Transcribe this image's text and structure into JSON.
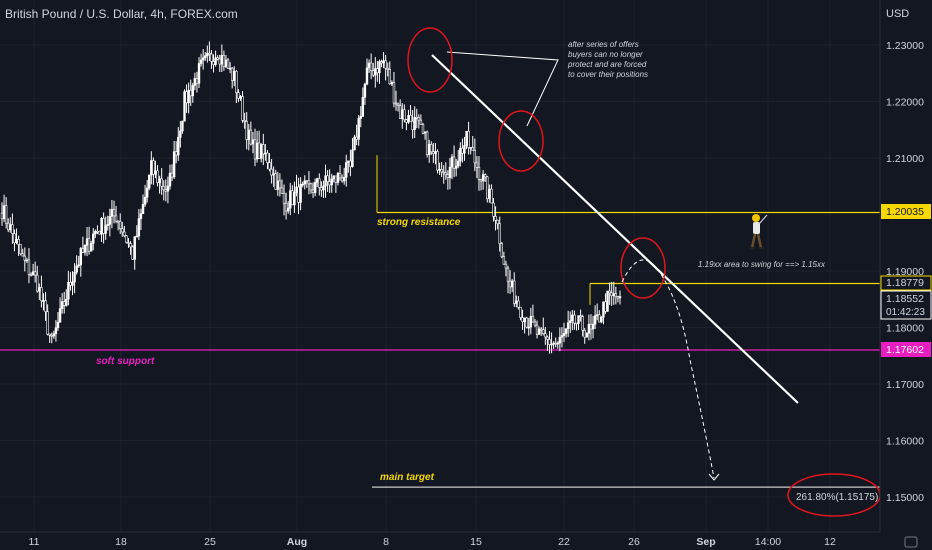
{
  "header": {
    "title": "British Pound / U.S. Dollar, 4h, FOREX.com"
  },
  "chart_data": {
    "type": "candlestick",
    "currency": "USD",
    "y_ticks": [
      "1.23000",
      "1.22000",
      "1.21000",
      "1.19000",
      "1.18000",
      "1.17000",
      "1.16000",
      "1.15000"
    ],
    "ylim": [
      1.1475,
      1.2377
    ],
    "x_ticks": [
      "11",
      "18",
      "25",
      "Aug",
      "8",
      "15",
      "22",
      "26",
      "Sep",
      "14:00",
      "12"
    ],
    "price_labels": {
      "resistance": "1.20035",
      "level_2": "1.18779",
      "current": "1.18552",
      "countdown": "01:42:23",
      "support": "1.17602"
    },
    "levels": [
      {
        "key": "resistance",
        "price": 1.20035,
        "color": "#f5d800"
      },
      {
        "key": "level_2",
        "price": 1.18779,
        "color": "#f5d800"
      },
      {
        "key": "support",
        "price": 1.17602,
        "color": "#e91ec0"
      },
      {
        "key": "target",
        "price": 1.15175,
        "color": "#c8c8c8"
      }
    ],
    "annotations": {
      "resistance": "strong resistance",
      "support": "soft support",
      "target": "main target",
      "swing": "1.19xx area to swing for ==> 1.15xx",
      "offers": [
        "after series of offers",
        "buyers can no longer",
        "protect and are forced",
        "to cover their positions"
      ],
      "fib": "261.80%(1.15175)"
    },
    "colors": {
      "background": "#131722",
      "candle_up": "#ffffff",
      "candle_down": "#ffffff",
      "grid": "#1e222d",
      "text": "#d1d4dc",
      "trendline": "#ffffff",
      "circle": "#e0161b"
    },
    "anchors": [
      [
        0,
        1.201
      ],
      [
        10,
        1.192
      ],
      [
        17,
        1.188
      ],
      [
        24,
        1.177
      ],
      [
        35,
        1.1905
      ],
      [
        45,
        1.197
      ],
      [
        55,
        1.2
      ],
      [
        63,
        1.193
      ],
      [
        72,
        1.208
      ],
      [
        80,
        1.204
      ],
      [
        88,
        1.22
      ],
      [
        96,
        1.226
      ],
      [
        104,
        1.229
      ],
      [
        112,
        1.224
      ],
      [
        120,
        1.212
      ],
      [
        128,
        1.21
      ],
      [
        136,
        1.202
      ],
      [
        144,
        1.204
      ],
      [
        152,
        1.205
      ],
      [
        160,
        1.206
      ],
      [
        168,
        1.208
      ],
      [
        176,
        1.225
      ],
      [
        184,
        1.227
      ],
      [
        192,
        1.218
      ],
      [
        200,
        1.216
      ],
      [
        208,
        1.21
      ],
      [
        216,
        1.208
      ],
      [
        224,
        1.213
      ],
      [
        232,
        1.206
      ],
      [
        238,
        1.2
      ],
      [
        244,
        1.188
      ],
      [
        252,
        1.182
      ],
      [
        260,
        1.178
      ],
      [
        268,
        1.177
      ],
      [
        276,
        1.181
      ],
      [
        284,
        1.179
      ],
      [
        292,
        1.185
      ],
      [
        298,
        1.1855
      ]
    ]
  }
}
